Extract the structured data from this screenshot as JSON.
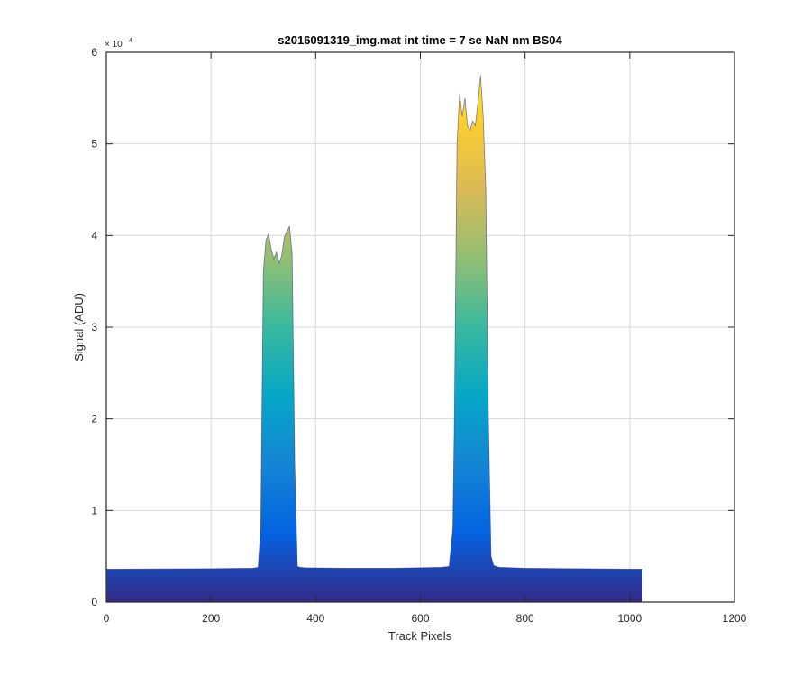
{
  "chart_data": {
    "type": "area",
    "title": "s2016091319_img.mat int time = 7 se  NaN nm BS04",
    "xlabel": "Track Pixels",
    "ylabel": "Signal (ADU)",
    "xlim": [
      0,
      1200
    ],
    "ylim": [
      0,
      60000
    ],
    "y_exponent_label": "× 10",
    "y_exponent_power": "4",
    "x_ticks": [
      0,
      200,
      400,
      600,
      800,
      1000,
      1200
    ],
    "x_tick_labels": [
      "0",
      "200",
      "400",
      "600",
      "800",
      "1000",
      "1200"
    ],
    "y_ticks": [
      0,
      10000,
      20000,
      30000,
      40000,
      50000,
      60000
    ],
    "y_tick_labels": [
      "0",
      "1",
      "2",
      "3",
      "4",
      "5",
      "6"
    ],
    "grid": true,
    "colormap": [
      "#352a87",
      "#0363e1",
      "#1485d4",
      "#06a7c6",
      "#38b99e",
      "#92bf73",
      "#d9ba56",
      "#fcce2e",
      "#f9fb0e"
    ],
    "series": [
      {
        "x": [
          1,
          100,
          200,
          280,
          290,
          295,
          300,
          305,
          310,
          315,
          320,
          325,
          330,
          335,
          340,
          345,
          350,
          355,
          360,
          365,
          370,
          380,
          450,
          550,
          640,
          655,
          662,
          665,
          670,
          675,
          680,
          685,
          690,
          695,
          700,
          705,
          710,
          715,
          720,
          725,
          730,
          735,
          740,
          750,
          800,
          900,
          1000,
          1024
        ],
        "y": [
          3600,
          3620,
          3650,
          3700,
          3800,
          8000,
          36000,
          39500,
          40200,
          38500,
          37500,
          38200,
          37000,
          37800,
          39800,
          40500,
          41000,
          38000,
          15000,
          3900,
          3800,
          3750,
          3700,
          3700,
          3800,
          3900,
          8000,
          20000,
          50000,
          55500,
          53000,
          55000,
          52000,
          51500,
          52500,
          52000,
          54500,
          57500,
          53000,
          45000,
          20000,
          5000,
          4000,
          3800,
          3700,
          3650,
          3600,
          3600
        ]
      }
    ]
  }
}
